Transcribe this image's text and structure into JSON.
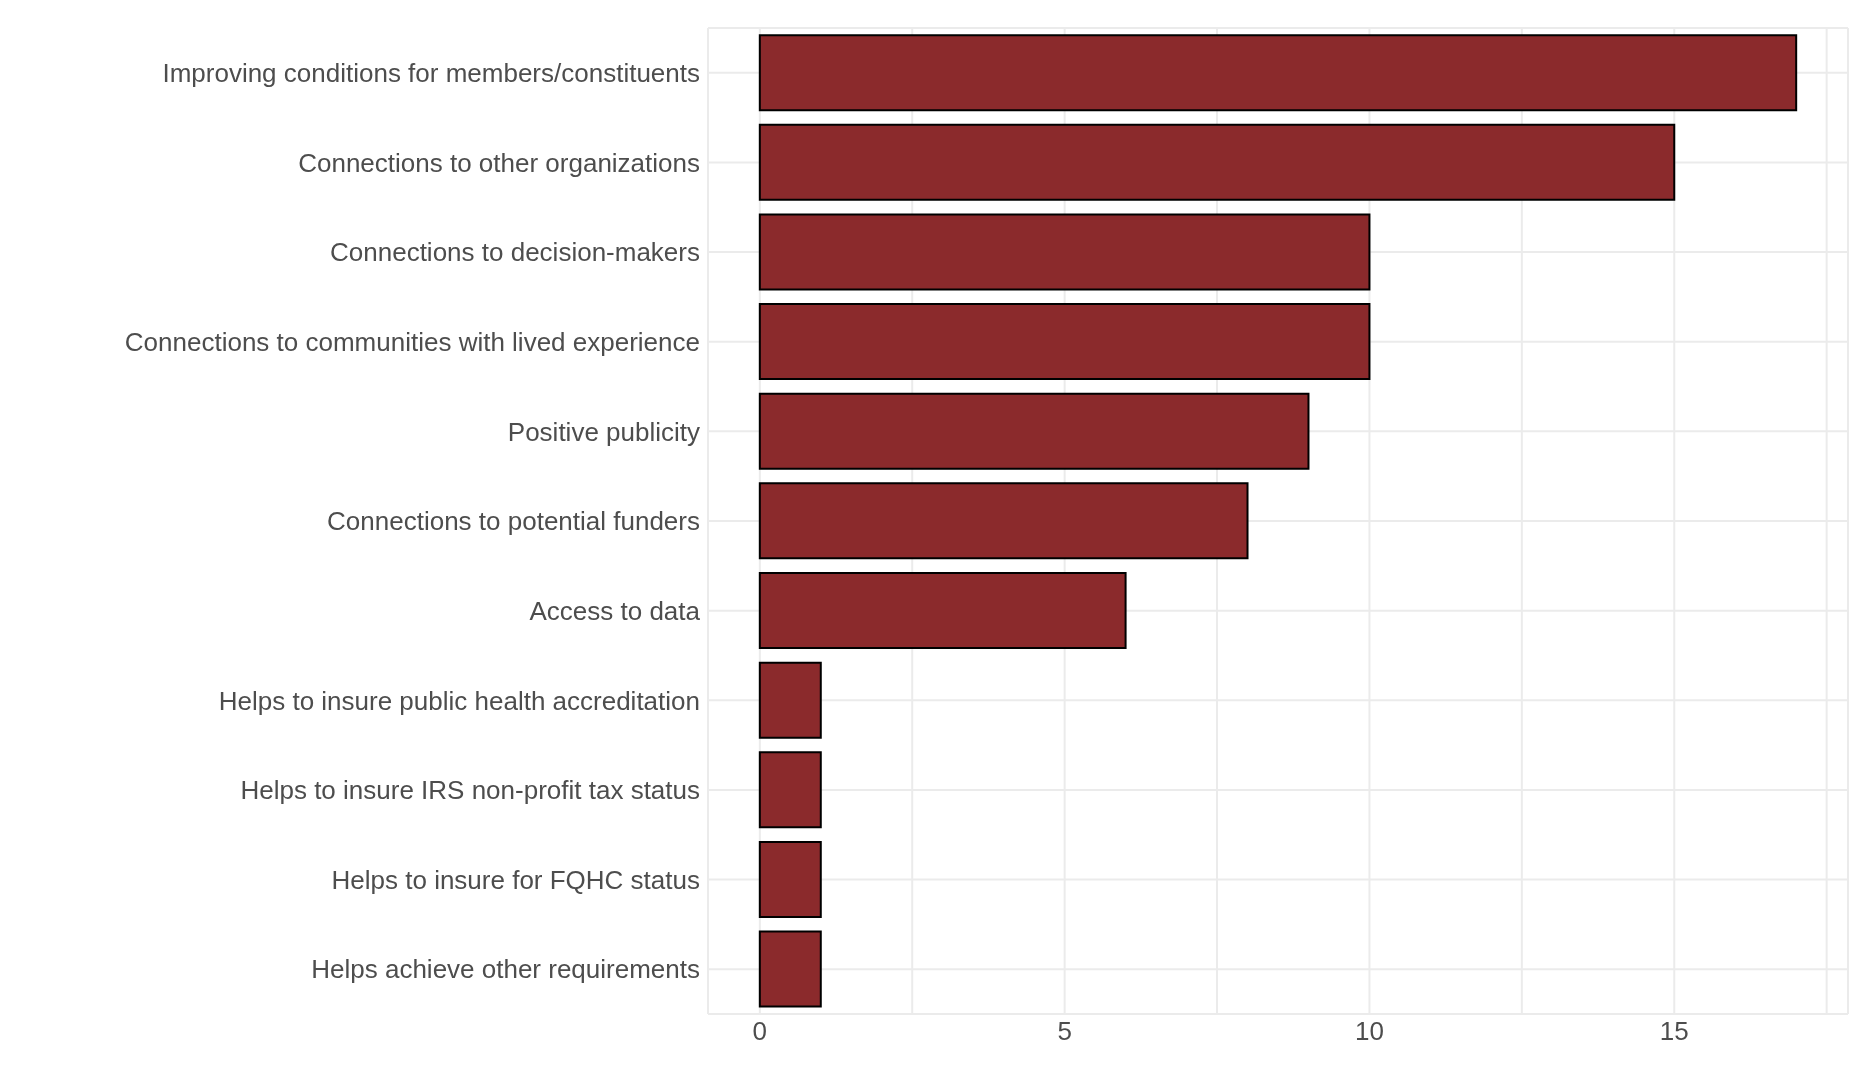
{
  "chart_data": {
    "type": "bar",
    "orientation": "horizontal",
    "categories": [
      "Improving conditions for members/constituents",
      "Connections to other organizations",
      "Connections to decision-makers",
      "Connections to communities with lived experience",
      "Positive publicity",
      "Connections to potential funders",
      "Access to data",
      "Helps to insure public health accreditation",
      "Helps to insure IRS non-profit tax status",
      "Helps to insure for FQHC status",
      "Helps achieve other requirements"
    ],
    "values": [
      17,
      15,
      10,
      10,
      9,
      8,
      6,
      1,
      1,
      1,
      1
    ],
    "color": "#8b2a2c",
    "xlim": [
      -0.85,
      17.85
    ],
    "xticks": [
      0,
      {
        "value": 2.5,
        "label": null
      },
      5,
      {
        "value": 7.5,
        "label": null
      },
      10,
      {
        "value": 12.5,
        "label": null
      },
      15,
      {
        "value": 17.5,
        "label": null
      }
    ],
    "grid": true
  }
}
